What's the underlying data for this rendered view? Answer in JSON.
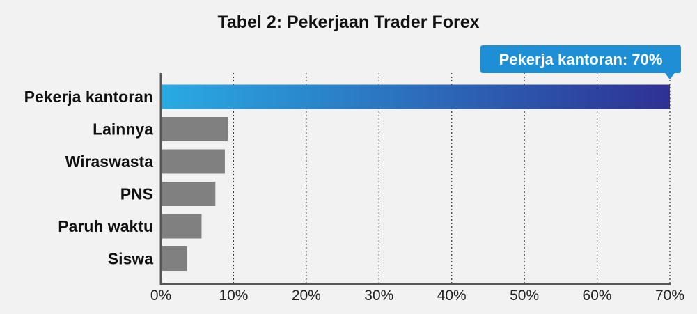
{
  "chart_data": {
    "type": "bar",
    "orientation": "horizontal",
    "title": "Tabel 2: Pekerjaan Trader Forex",
    "categories": [
      "Pekerja kantoran",
      "Lainnya",
      "Wiraswasta",
      "PNS",
      "Paruh waktu",
      "Siswa"
    ],
    "values": [
      70,
      9.2,
      8.8,
      7.5,
      5.6,
      3.6
    ],
    "xlim": [
      0,
      70
    ],
    "x_ticks": [
      0,
      10,
      20,
      30,
      40,
      50,
      60,
      70
    ],
    "x_tick_labels": [
      "0%",
      "10%",
      "20%",
      "30%",
      "40%",
      "50%",
      "60%",
      "70%"
    ],
    "grid": "vertical-dotted",
    "highlight": {
      "category": "Pekerja kantoran",
      "label": "Pekerja kantoran: 70%",
      "gradient": [
        "#29abe2",
        "#2e3192"
      ]
    },
    "bar_color": "#808080",
    "callout_color": "#1e8fd5"
  }
}
